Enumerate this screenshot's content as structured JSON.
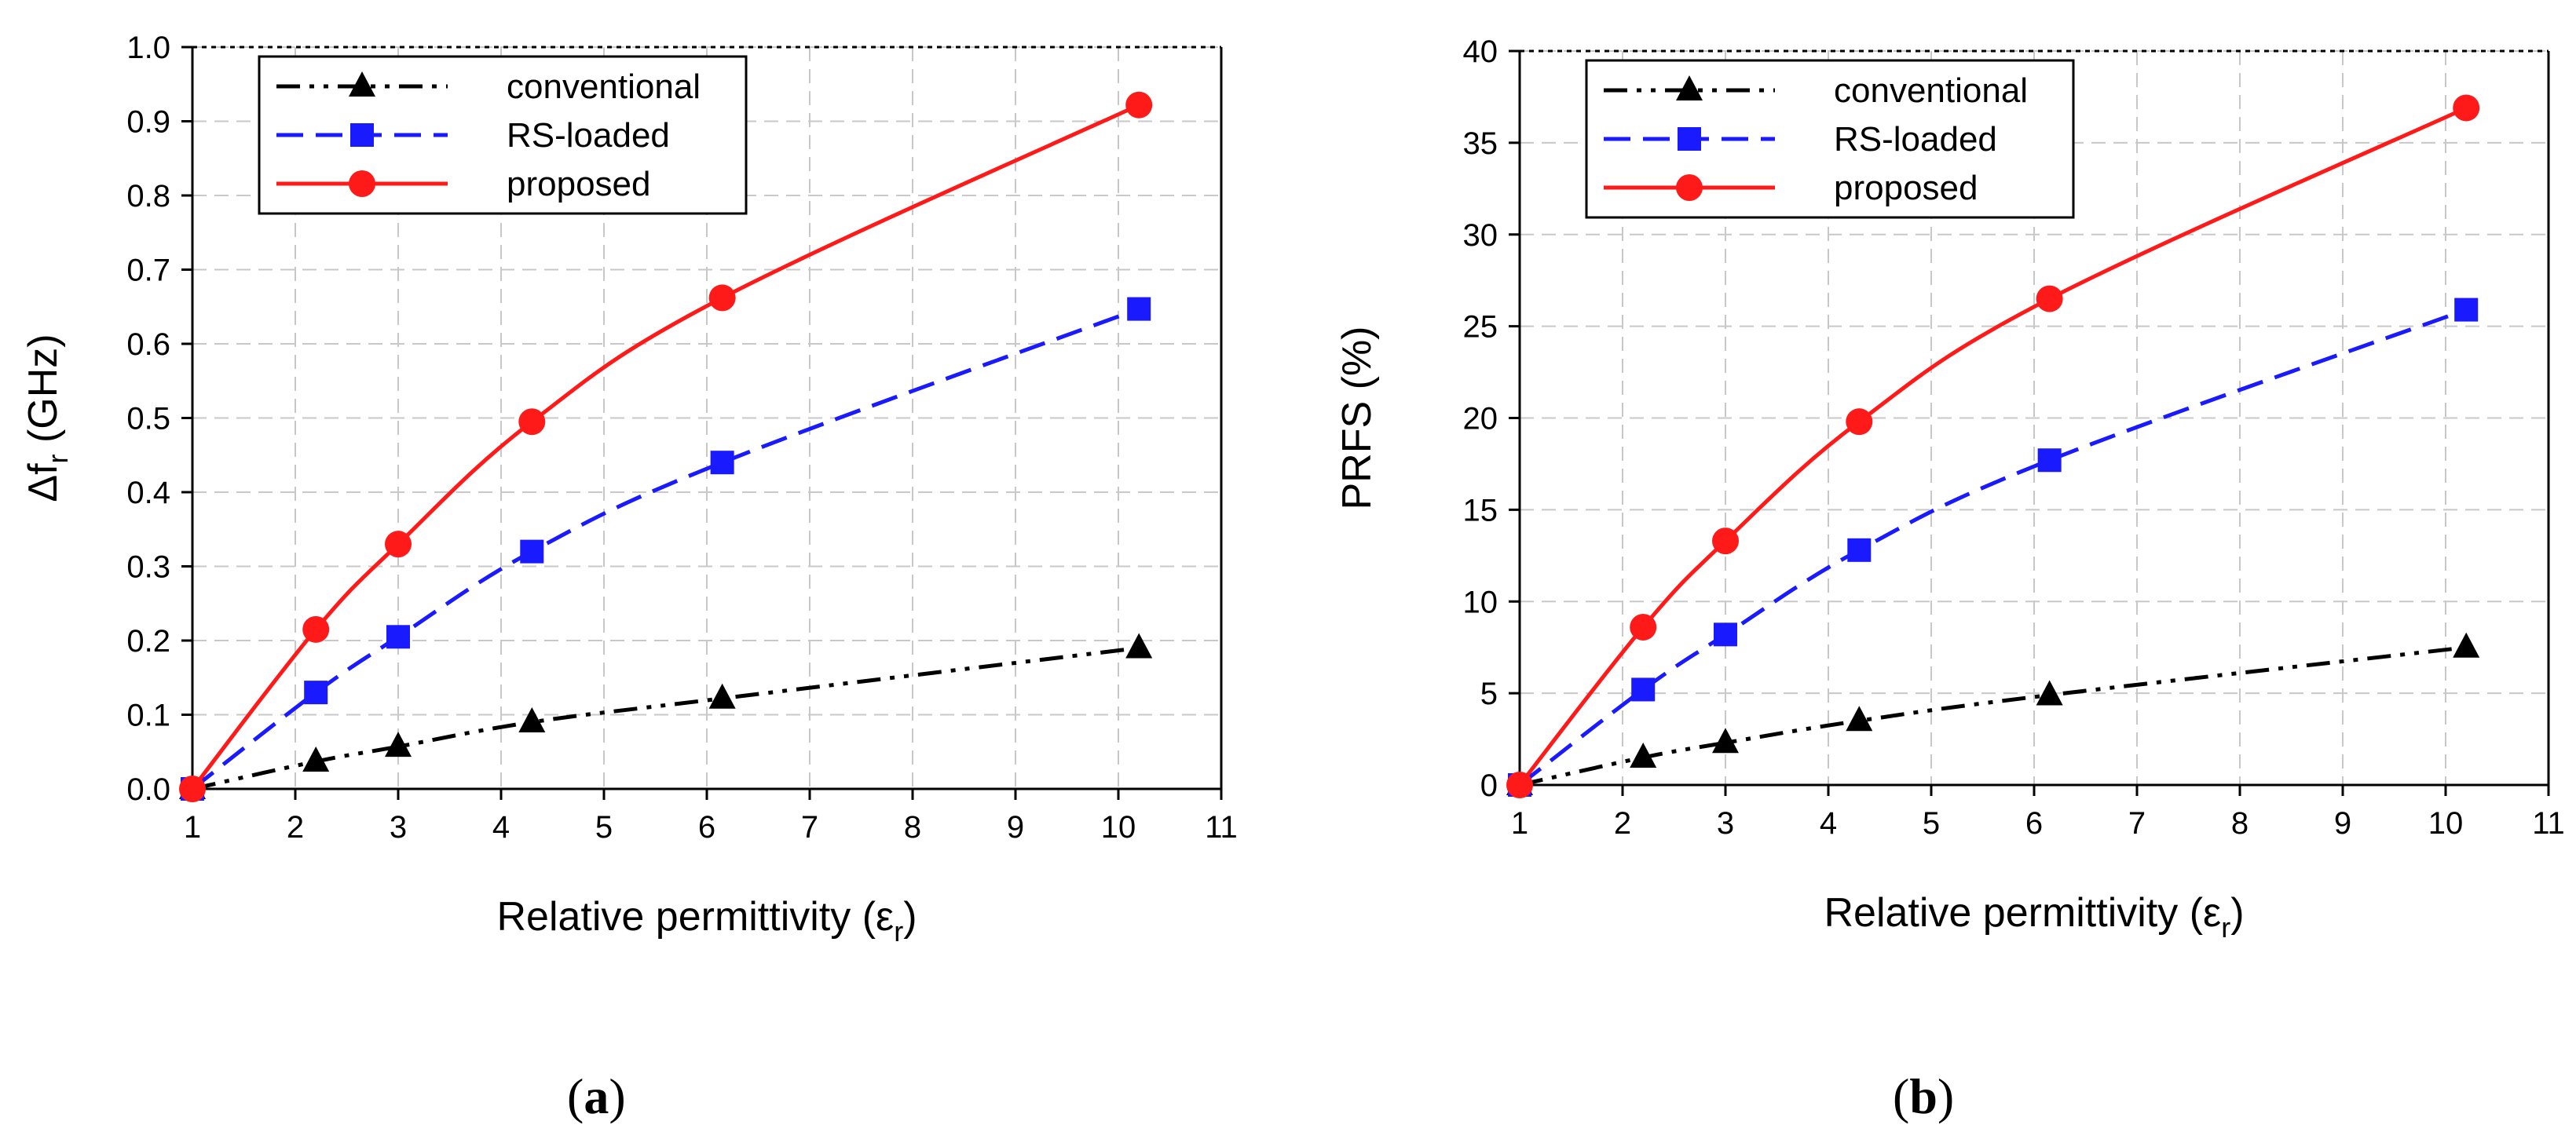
{
  "chart_data": [
    {
      "type": "line",
      "panel": "a",
      "caption": "(a)",
      "caption_letter": "a",
      "xlabel": "Relative permittivity (ε_r)",
      "xlabel_main": "Relative permittivity (ε",
      "xlabel_sub": "r",
      "xlabel_close": ")",
      "ylabel": "Δf_r (GHz)",
      "ylabel_main": "Δf",
      "ylabel_sub": "r",
      "ylabel_unit": " (GHz)",
      "xlim": [
        1,
        11
      ],
      "ylim": [
        0,
        1.0
      ],
      "xticks": [
        1,
        2,
        3,
        4,
        5,
        6,
        7,
        8,
        9,
        10,
        11
      ],
      "yticks": [
        0.0,
        0.1,
        0.2,
        0.3,
        0.4,
        0.5,
        0.6,
        0.7,
        0.8,
        0.9,
        1.0
      ],
      "ytick_labels": [
        "0.0",
        "0.1",
        "0.2",
        "0.3",
        "0.4",
        "0.5",
        "0.6",
        "0.7",
        "0.8",
        "0.9",
        "1.0"
      ],
      "grid": true,
      "legend_position": "top-left",
      "x": [
        1,
        2.2,
        3,
        4.3,
        6.15,
        10.2
      ],
      "series": [
        {
          "name": "conventional",
          "color": "#000000",
          "marker": "triangle",
          "dash": "dash-dot-dot",
          "values": [
            0,
            0.037,
            0.057,
            0.09,
            0.122,
            0.19
          ]
        },
        {
          "name": "RS-loaded",
          "color": "#1a1aff",
          "marker": "square",
          "dash": "dashed",
          "values": [
            0,
            0.13,
            0.205,
            0.32,
            0.44,
            0.647
          ]
        },
        {
          "name": "proposed",
          "color": "#ff1a1a",
          "marker": "circle",
          "dash": "solid",
          "values": [
            0,
            0.215,
            0.33,
            0.495,
            0.662,
            0.922
          ]
        }
      ]
    },
    {
      "type": "line",
      "panel": "b",
      "caption": "(b)",
      "caption_letter": "b",
      "xlabel": "Relative permittivity (ε_r)",
      "xlabel_main": "Relative permittivity (ε",
      "xlabel_sub": "r",
      "xlabel_close": ")",
      "ylabel": "PRFS (%)",
      "xlim": [
        1,
        11
      ],
      "ylim": [
        0,
        40
      ],
      "xticks": [
        1,
        2,
        3,
        4,
        5,
        6,
        7,
        8,
        9,
        10,
        11
      ],
      "yticks": [
        0,
        5,
        10,
        15,
        20,
        25,
        30,
        35,
        40
      ],
      "ytick_labels": [
        "0",
        "5",
        "10",
        "15",
        "20",
        "25",
        "30",
        "35",
        "40"
      ],
      "grid": true,
      "legend_position": "top-left",
      "x": [
        1,
        2.2,
        3,
        4.3,
        6.15,
        10.2
      ],
      "series": [
        {
          "name": "conventional",
          "color": "#000000",
          "marker": "triangle",
          "dash": "dash-dot-dot",
          "values": [
            0,
            1.5,
            2.3,
            3.5,
            4.9,
            7.5
          ]
        },
        {
          "name": "RS-loaded",
          "color": "#1a1aff",
          "marker": "square",
          "dash": "dashed",
          "values": [
            0,
            5.2,
            8.2,
            12.8,
            17.7,
            25.9
          ]
        },
        {
          "name": "proposed",
          "color": "#ff1a1a",
          "marker": "circle",
          "dash": "solid",
          "values": [
            0,
            8.6,
            13.3,
            19.8,
            26.5,
            36.9
          ]
        }
      ]
    }
  ]
}
